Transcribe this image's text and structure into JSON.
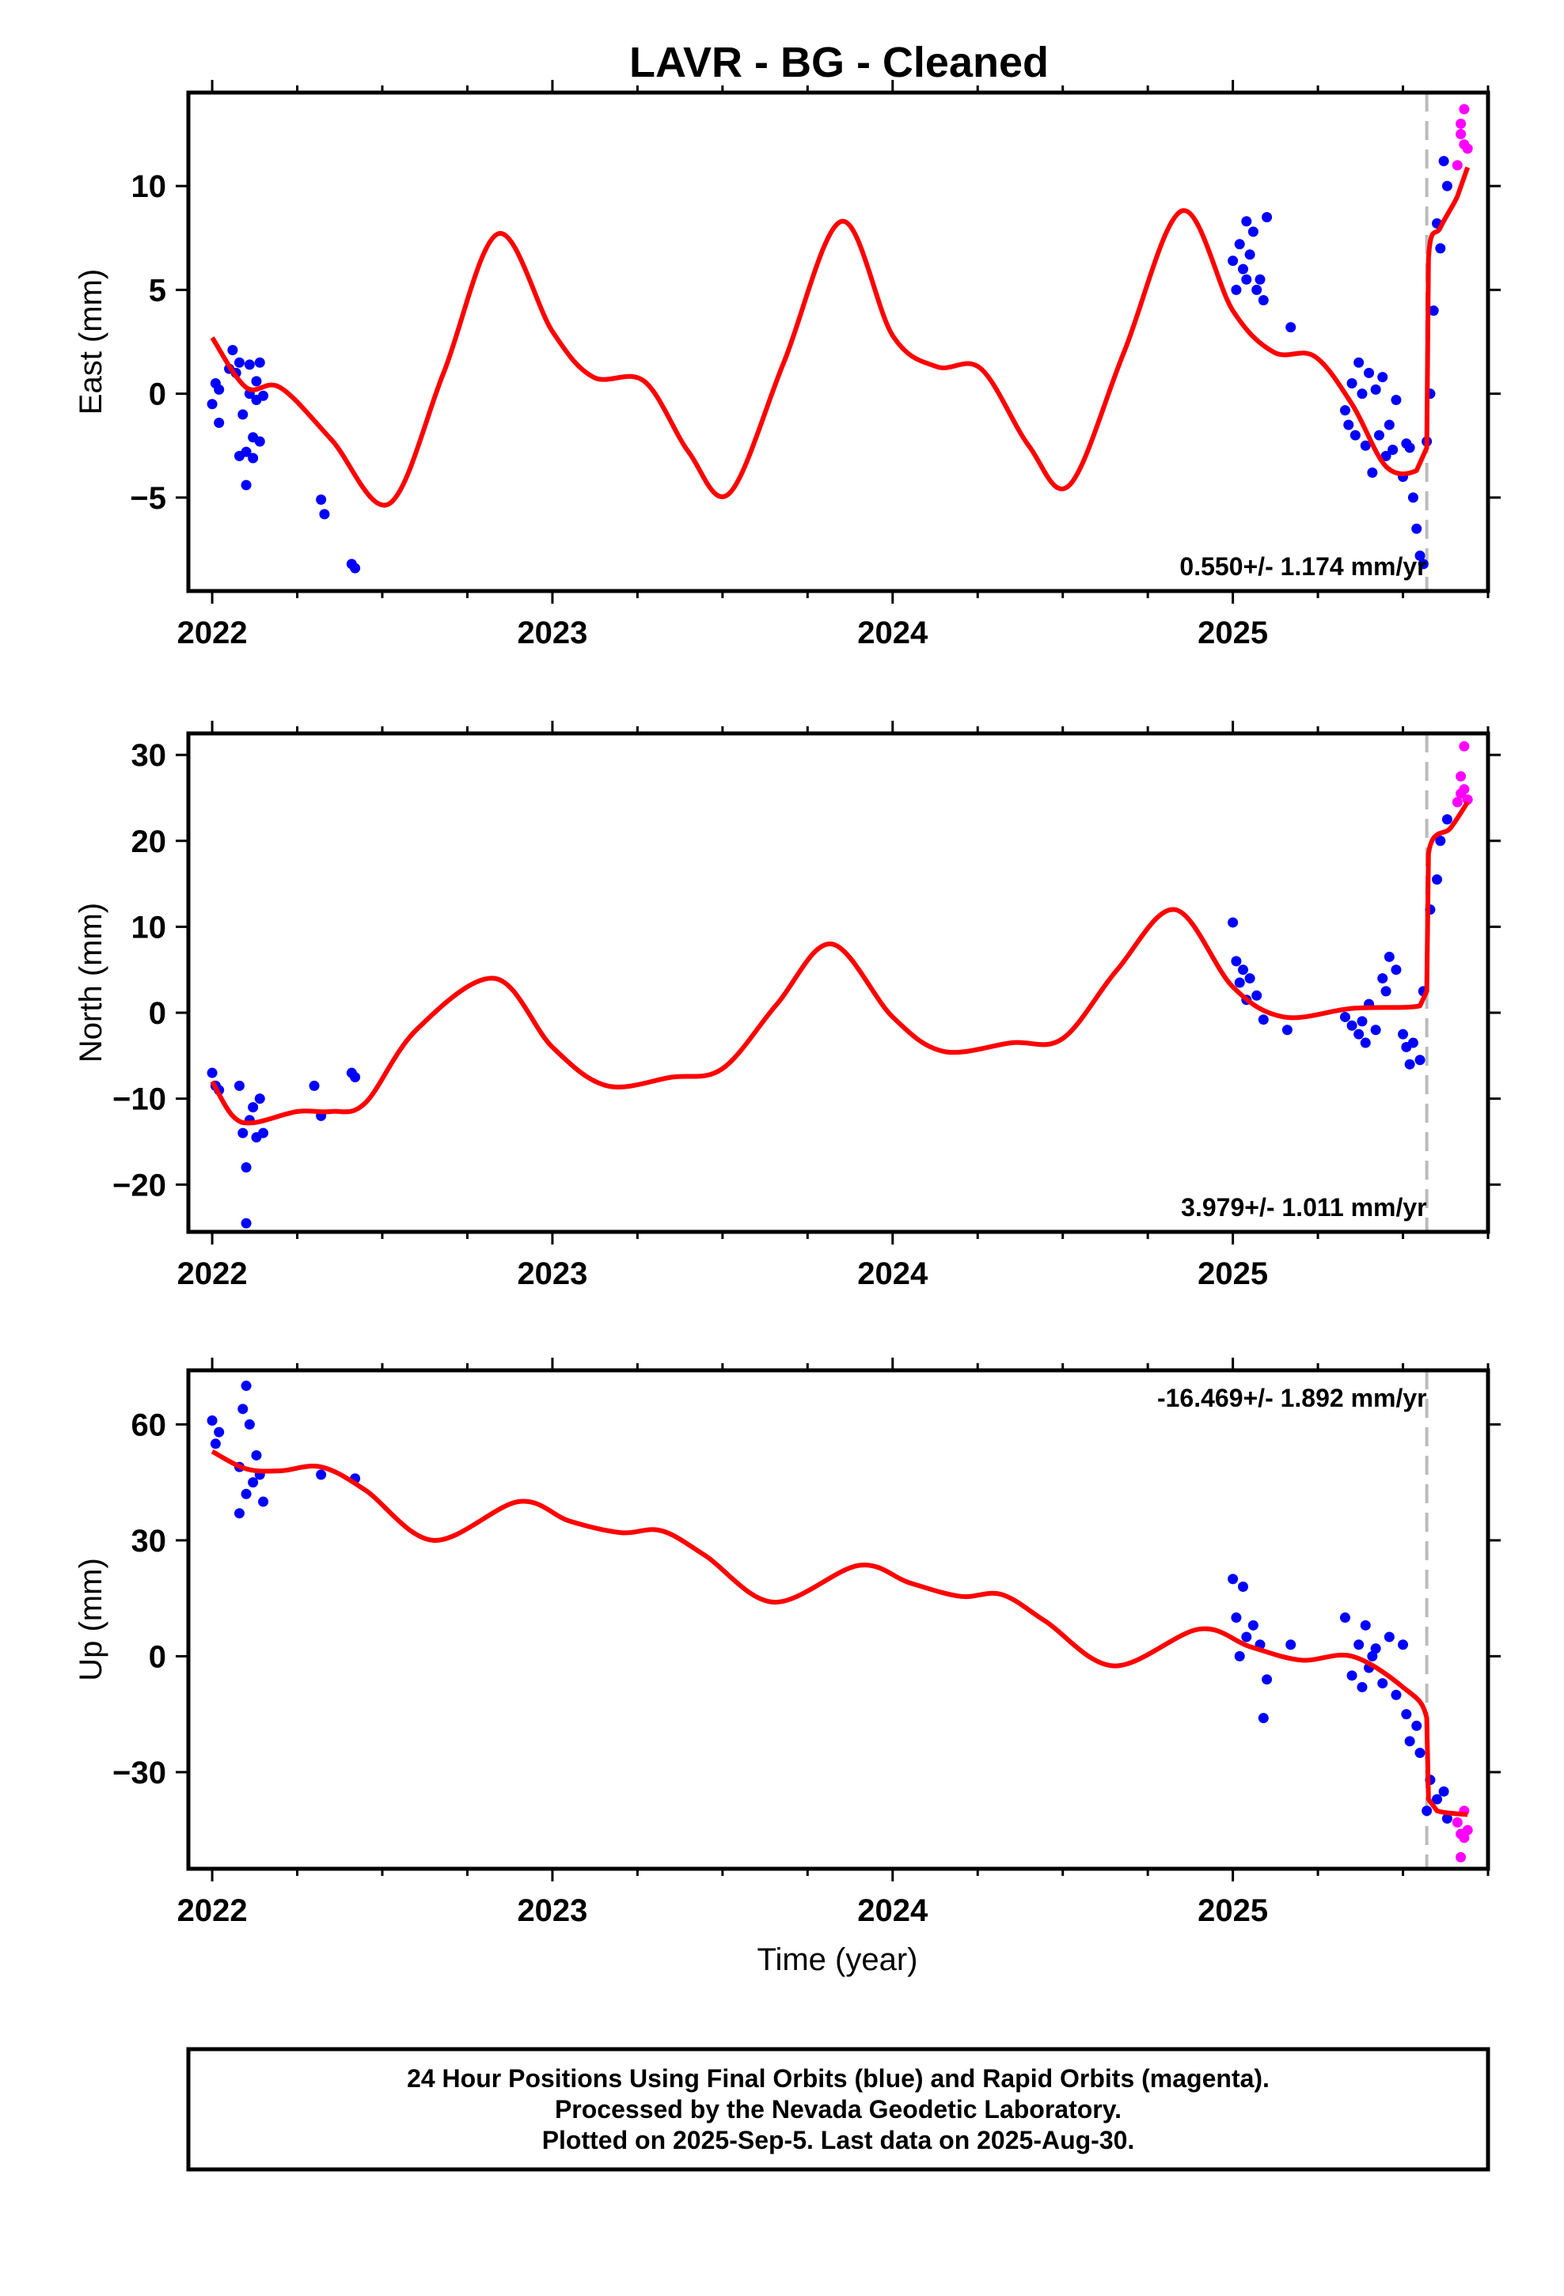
{
  "title": "LAVR  - BG - Cleaned",
  "x_axis_label": "Time (year)",
  "footer": {
    "line1": "24 Hour Positions Using Final Orbits (blue) and Rapid Orbits (magenta).",
    "line2": "Processed by the Nevada Geodetic Laboratory.",
    "line3": "Plotted on 2025-Sep-5. Last data on 2025-Aug-30."
  },
  "colors": {
    "final_orbits": "#0000ff",
    "rapid_orbits": "#ff00ff",
    "model": "#ff0000",
    "step_line": "#bbbbbb"
  },
  "chart_data": [
    {
      "type": "scatter",
      "panel": "east",
      "ylabel": "East (mm)",
      "xlim": [
        2021.93,
        2025.75
      ],
      "ylim": [
        -9.5,
        14.5
      ],
      "xticks": [
        2022,
        2023,
        2024,
        2025
      ],
      "xtick_labels": [
        "2022",
        "2023",
        "2024",
        "2025"
      ],
      "yticks": [
        -5,
        0,
        5,
        10
      ],
      "ytick_labels": [
        "−5",
        "0",
        "5",
        "10"
      ],
      "grid": false,
      "rate": "0.550+/- 1.174 mm/yr",
      "rate_position": "bottom-right",
      "step_epoch": 2025.57,
      "series": [
        {
          "role": "final",
          "x": [
            2022.0,
            2022.01,
            2022.02,
            2022.02,
            2022.05,
            2022.06,
            2022.07,
            2022.08,
            2022.08,
            2022.09,
            2022.1,
            2022.1,
            2022.11,
            2022.11,
            2022.12,
            2022.12,
            2022.13,
            2022.13,
            2022.14,
            2022.14,
            2022.15,
            2022.32,
            2022.33,
            2022.41,
            2022.42,
            2025.0,
            2025.01,
            2025.02,
            2025.03,
            2025.04,
            2025.04,
            2025.05,
            2025.06,
            2025.07,
            2025.08,
            2025.09,
            2025.1,
            2025.17,
            2025.33,
            2025.34,
            2025.35,
            2025.36,
            2025.37,
            2025.38,
            2025.39,
            2025.4,
            2025.41,
            2025.42,
            2025.43,
            2025.44,
            2025.45,
            2025.46,
            2025.47,
            2025.48,
            2025.5,
            2025.51,
            2025.52,
            2025.53,
            2025.54,
            2025.55,
            2025.56,
            2025.57,
            2025.58,
            2025.59,
            2025.6,
            2025.61,
            2025.62,
            2025.63
          ],
          "y": [
            -0.5,
            0.5,
            -1.4,
            0.2,
            1.2,
            2.1,
            1.0,
            -3.0,
            1.5,
            -1.0,
            -4.4,
            -2.8,
            0.0,
            1.4,
            -2.1,
            -3.1,
            0.6,
            -0.3,
            1.5,
            -2.3,
            -0.1,
            -5.1,
            -5.8,
            -8.2,
            -8.4,
            6.4,
            5.0,
            7.2,
            6.0,
            8.3,
            5.5,
            6.7,
            7.8,
            5.0,
            5.5,
            4.5,
            8.5,
            3.2,
            -0.8,
            -1.5,
            0.5,
            -2.0,
            1.5,
            0.0,
            -2.5,
            1.0,
            -3.8,
            0.2,
            -2.0,
            0.8,
            -3.0,
            -1.5,
            -2.7,
            -0.3,
            -4.0,
            -2.4,
            -2.6,
            -5.0,
            -6.5,
            -7.8,
            -8.2,
            -2.3,
            0.0,
            4.0,
            8.2,
            7.0,
            11.2,
            10.0
          ]
        },
        {
          "role": "rapid",
          "x": [
            2025.66,
            2025.67,
            2025.67,
            2025.68,
            2025.68,
            2025.69
          ],
          "y": [
            11.0,
            12.5,
            13.0,
            13.7,
            12.0,
            11.8
          ]
        }
      ],
      "model": {
        "x": [
          2022.0,
          2022.1,
          2022.2,
          2022.35,
          2022.52,
          2022.68,
          2022.84,
          2023.0,
          2023.12,
          2023.27,
          2023.4,
          2023.52,
          2023.68,
          2023.85,
          2024.0,
          2024.13,
          2024.26,
          2024.4,
          2024.52,
          2024.68,
          2024.85,
          2025.0,
          2025.12,
          2025.24,
          2025.35,
          2025.45,
          2025.54,
          2025.57,
          2025.575,
          2025.61,
          2025.66,
          2025.69
        ],
        "y": [
          2.7,
          0.3,
          0.3,
          -2.2,
          -5.3,
          1.0,
          7.7,
          3.0,
          0.8,
          0.6,
          -2.8,
          -4.8,
          1.5,
          8.3,
          2.8,
          1.3,
          1.2,
          -2.5,
          -4.4,
          2.0,
          8.8,
          4.0,
          2.0,
          1.8,
          -0.5,
          -3.5,
          -3.7,
          -2.6,
          6.5,
          8.0,
          9.5,
          10.9
        ]
      }
    },
    {
      "type": "scatter",
      "panel": "north",
      "ylabel": "North (mm)",
      "xlim": [
        2021.93,
        2025.75
      ],
      "ylim": [
        -25.5,
        32.5
      ],
      "xticks": [
        2022,
        2023,
        2024,
        2025
      ],
      "xtick_labels": [
        "2022",
        "2023",
        "2024",
        "2025"
      ],
      "yticks": [
        -20,
        -10,
        0,
        10,
        20,
        30
      ],
      "ytick_labels": [
        "−20",
        "−10",
        "0",
        "10",
        "20",
        "30"
      ],
      "grid": false,
      "rate": "3.979+/- 1.011 mm/yr",
      "rate_position": "bottom-right",
      "step_epoch": 2025.57,
      "series": [
        {
          "role": "final",
          "x": [
            2022.0,
            2022.01,
            2022.02,
            2022.08,
            2022.09,
            2022.1,
            2022.1,
            2022.11,
            2022.12,
            2022.13,
            2022.14,
            2022.15,
            2022.3,
            2022.32,
            2022.41,
            2022.42,
            2025.0,
            2025.01,
            2025.02,
            2025.03,
            2025.04,
            2025.05,
            2025.07,
            2025.09,
            2025.16,
            2025.33,
            2025.35,
            2025.37,
            2025.38,
            2025.39,
            2025.4,
            2025.42,
            2025.44,
            2025.45,
            2025.46,
            2025.48,
            2025.5,
            2025.51,
            2025.52,
            2025.53,
            2025.55,
            2025.56,
            2025.58,
            2025.6,
            2025.61,
            2025.63
          ],
          "y": [
            -7.0,
            -8.5,
            -9.0,
            -8.5,
            -14.0,
            -18.0,
            -24.5,
            -12.5,
            -11.0,
            -14.5,
            -10.0,
            -14.0,
            -8.5,
            -12.0,
            -7.0,
            -7.5,
            10.5,
            6.0,
            3.5,
            5.0,
            1.5,
            4.0,
            2.0,
            -0.8,
            -2.0,
            -0.5,
            -1.5,
            -2.5,
            -1.0,
            -3.5,
            1.0,
            -2.0,
            4.0,
            2.5,
            6.5,
            5.0,
            -2.5,
            -4.0,
            -6.0,
            -3.5,
            -5.5,
            2.5,
            12.0,
            15.5,
            20.0,
            22.5
          ]
        },
        {
          "role": "rapid",
          "x": [
            2025.66,
            2025.67,
            2025.67,
            2025.68,
            2025.68,
            2025.69
          ],
          "y": [
            24.5,
            25.5,
            27.5,
            31.0,
            26.0,
            24.8
          ]
        }
      ],
      "model": {
        "x": [
          2022.0,
          2022.06,
          2022.12,
          2022.25,
          2022.35,
          2022.45,
          2022.6,
          2022.83,
          2023.0,
          2023.16,
          2023.35,
          2023.5,
          2023.66,
          2023.82,
          2024.0,
          2024.15,
          2024.35,
          2024.5,
          2024.66,
          2024.83,
          2025.0,
          2025.15,
          2025.35,
          2025.55,
          2025.57,
          2025.575,
          2025.64,
          2025.69
        ],
        "y": [
          -8.0,
          -12.0,
          -12.8,
          -11.5,
          -11.5,
          -10.5,
          -2.0,
          4.0,
          -4.0,
          -8.5,
          -7.5,
          -6.5,
          1.0,
          8.0,
          -0.5,
          -4.5,
          -3.5,
          -3.0,
          5.0,
          12.0,
          3.0,
          -0.5,
          0.5,
          0.8,
          2.5,
          18.5,
          21.5,
          24.5
        ]
      }
    },
    {
      "type": "scatter",
      "panel": "up",
      "ylabel": "Up (mm)",
      "xlim": [
        2021.93,
        2025.75
      ],
      "ylim": [
        -55,
        74
      ],
      "xticks": [
        2022,
        2023,
        2024,
        2025
      ],
      "xtick_labels": [
        "2022",
        "2023",
        "2024",
        "2025"
      ],
      "yticks": [
        -30,
        0,
        30,
        60
      ],
      "ytick_labels": [
        "−30",
        "0",
        "30",
        "60"
      ],
      "grid": false,
      "rate": "-16.469+/- 1.892 mm/yr",
      "rate_position": "top-right",
      "step_epoch": 2025.57,
      "series": [
        {
          "role": "final",
          "x": [
            2022.0,
            2022.01,
            2022.02,
            2022.08,
            2022.08,
            2022.09,
            2022.1,
            2022.1,
            2022.11,
            2022.12,
            2022.13,
            2022.14,
            2022.15,
            2022.32,
            2022.42,
            2025.0,
            2025.01,
            2025.02,
            2025.03,
            2025.04,
            2025.06,
            2025.08,
            2025.09,
            2025.1,
            2025.17,
            2025.33,
            2025.35,
            2025.37,
            2025.38,
            2025.39,
            2025.4,
            2025.41,
            2025.42,
            2025.44,
            2025.46,
            2025.48,
            2025.5,
            2025.51,
            2025.52,
            2025.54,
            2025.55,
            2025.57,
            2025.58,
            2025.6,
            2025.62,
            2025.63
          ],
          "y": [
            61.0,
            55.0,
            58.0,
            37.0,
            49.0,
            64.0,
            70.0,
            42.0,
            60.0,
            45.0,
            52.0,
            47.0,
            40.0,
            47.0,
            46.0,
            20.0,
            10.0,
            0.0,
            18.0,
            5.0,
            8.0,
            3.0,
            -16.0,
            -6.0,
            3.0,
            10.0,
            -5.0,
            3.0,
            -8.0,
            8.0,
            -3.0,
            0.0,
            2.0,
            -7.0,
            5.0,
            -10.0,
            3.0,
            -15.0,
            -22.0,
            -18.0,
            -25.0,
            -40.0,
            -32.0,
            -37.0,
            -35.0,
            -42.0
          ]
        },
        {
          "role": "rapid",
          "x": [
            2025.66,
            2025.67,
            2025.67,
            2025.68,
            2025.68,
            2025.69
          ],
          "y": [
            -43.0,
            -46.0,
            -52.0,
            -40.0,
            -47.0,
            -45.0
          ]
        }
      ],
      "model": {
        "x": [
          2022.0,
          2022.1,
          2022.2,
          2022.32,
          2022.45,
          2022.65,
          2022.9,
          2023.05,
          2023.2,
          2023.32,
          2023.45,
          2023.65,
          2023.9,
          2024.05,
          2024.2,
          2024.32,
          2024.45,
          2024.65,
          2024.9,
          2025.05,
          2025.2,
          2025.35,
          2025.5,
          2025.57,
          2025.575,
          2025.6,
          2025.69
        ],
        "y": [
          53.0,
          48.5,
          48.0,
          49.0,
          43.0,
          30.0,
          40.0,
          35.0,
          32.0,
          32.5,
          26.0,
          14.0,
          23.5,
          19.0,
          15.5,
          16.0,
          9.0,
          -2.5,
          7.0,
          2.5,
          -1.0,
          0.0,
          -8.0,
          -16.0,
          -37.0,
          -40.0,
          -41.0
        ]
      }
    }
  ]
}
